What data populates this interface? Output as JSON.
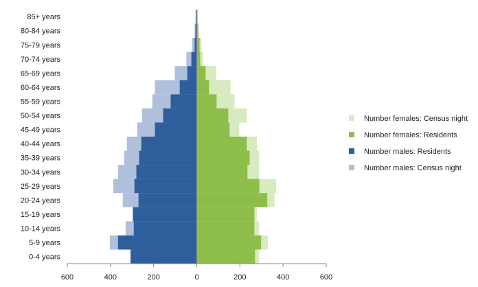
{
  "chart_data": {
    "type": "pyramid",
    "categories": [
      "0-4 years",
      "5-9 years",
      "10-14 years",
      "15-19 years",
      "20-24 years",
      "25-29 years",
      "30-34 years",
      "35-39 years",
      "40-44 years",
      "45-49 years",
      "50-54 years",
      "55-59 years",
      "60-64 years",
      "65-69 years",
      "70-74 years",
      "75-79 years",
      "80-84 years",
      "85+ years"
    ],
    "series": [
      {
        "name": "Number females: Census night",
        "color": "#d8eabf",
        "values": [
          289,
          330,
          289,
          279,
          360,
          368,
          289,
          289,
          279,
          197,
          232,
          175,
          156,
          89,
          29,
          22,
          10,
          6
        ]
      },
      {
        "name": "Number females: Residents",
        "color": "#8dbe4a",
        "values": [
          270,
          298,
          267,
          267,
          327,
          290,
          235,
          245,
          232,
          152,
          146,
          92,
          57,
          41,
          16,
          13,
          6,
          3
        ]
      },
      {
        "name": "Number males: Residents",
        "color": "#2e5e9c",
        "values": [
          -305,
          -365,
          -292,
          -295,
          -270,
          -289,
          -280,
          -267,
          -257,
          -194,
          -156,
          -121,
          -79,
          -44,
          -25,
          -10,
          -6,
          -3
        ]
      },
      {
        "name": "Number males: Census night",
        "color": "#b0c0dc",
        "values": [
          -310,
          -403,
          -330,
          -298,
          -343,
          -387,
          -365,
          -336,
          -324,
          -276,
          -254,
          -206,
          -194,
          -102,
          -48,
          -22,
          -10,
          -6
        ]
      }
    ],
    "xlim": [
      -600,
      600
    ],
    "xticks": [
      {
        "value": -600,
        "label": "600"
      },
      {
        "value": -400,
        "label": "400"
      },
      {
        "value": -200,
        "label": "200"
      },
      0,
      200,
      400,
      600
    ],
    "legend": "right"
  }
}
